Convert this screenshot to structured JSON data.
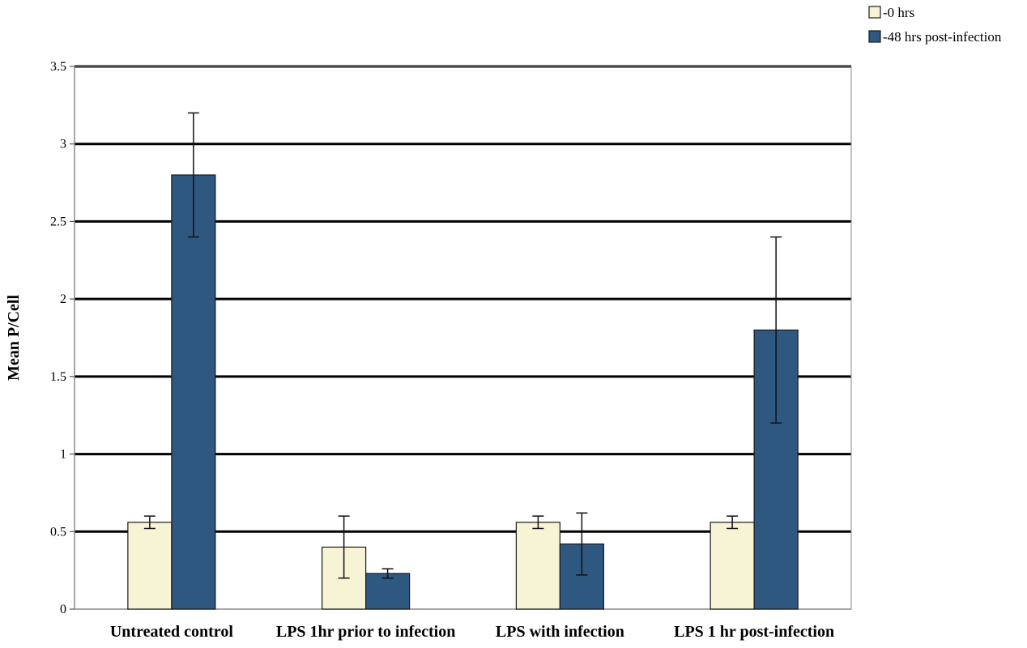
{
  "chart_data": {
    "type": "bar",
    "title": "",
    "xlabel": "",
    "ylabel": "Mean P/Cell",
    "ylim": [
      0,
      3.5
    ],
    "yticks": [
      "0",
      "0.5",
      "1",
      "1.5",
      "2",
      "2.5",
      "3",
      "3.5"
    ],
    "grid": true,
    "legend_position": "top-right",
    "categories": [
      "Untreated control",
      "LPS 1hr prior to infection",
      "LPS with infection",
      "LPS 1 hr post-infection"
    ],
    "series": [
      {
        "name": "-0 hrs",
        "color": "#f7f3d5",
        "values": [
          0.56,
          0.4,
          0.56,
          0.56
        ],
        "error": [
          0.04,
          0.2,
          0.04,
          0.04
        ]
      },
      {
        "name": "-48 hrs post-infection",
        "color": "#2f5880",
        "values": [
          2.8,
          0.23,
          0.42,
          1.8
        ],
        "error": [
          0.4,
          0.03,
          0.2,
          0.6
        ]
      }
    ]
  }
}
